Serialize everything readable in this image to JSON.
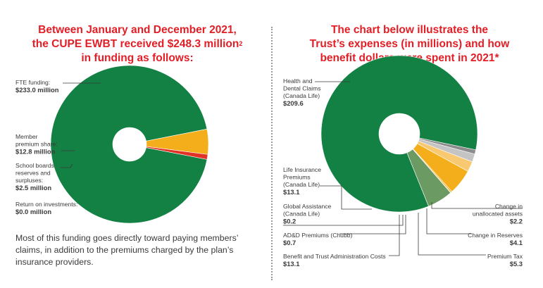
{
  "left_heading": {
    "line1": "Between January and December 2021,",
    "line2": "the CUPE EWBT received $248.3 million",
    "line2_sup": "2",
    "line3": "in funding as follows:"
  },
  "right_heading": {
    "line1": "The chart below illustrates the",
    "line2": "Trust’s expenses (in millions) and how",
    "line3": "benefit dollars were spent in 2021*"
  },
  "summary_text": "Most of this funding goes directly toward paying members’ claims, in addition to the premiums charged by the plan’s insurance providers.",
  "colors": {
    "green": "#138143",
    "gold": "#f5ae1b",
    "red": "#e03226",
    "sage": "#6c9a63",
    "light_gold": "#f9c972",
    "light_gray": "#c4c4c4",
    "dark_gray": "#8c8c8c"
  },
  "chart_data": [
    {
      "type": "pie",
      "donut": true,
      "title": "",
      "slices": [
        {
          "label_lines": [
            "FTE funding:"
          ],
          "value": 233.0,
          "value_label": "$233.0 million",
          "color": "#138143"
        },
        {
          "label_lines": [
            "Member",
            "premium share:"
          ],
          "value": 12.8,
          "value_label": "$12.8 million",
          "color": "#f5ae1b"
        },
        {
          "label_lines": [
            "School boards",
            "reserves and",
            "surpluses:"
          ],
          "value": 2.5,
          "value_label": "$2.5 million",
          "color": "#e03226"
        },
        {
          "label_lines": [
            "Return on investments:"
          ],
          "value": 0.0,
          "value_label": "$0.0 million",
          "color": "#f5ae1b"
        }
      ]
    },
    {
      "type": "pie",
      "donut": true,
      "title": "",
      "slices": [
        {
          "label_lines": [
            "Health and",
            "Dental Claims",
            "(Canada Life)"
          ],
          "value": 209.6,
          "value_label": "$209.6",
          "color": "#138143"
        },
        {
          "label_lines": [
            "Change in",
            "unallocated assets"
          ],
          "value": 2.2,
          "value_label": "$2.2",
          "color": "#8c8c8c"
        },
        {
          "label_lines": [
            "Change in Reserves"
          ],
          "value": 4.1,
          "value_label": "$4.1",
          "color": "#c4c4c4"
        },
        {
          "label_lines": [
            "Premium Tax"
          ],
          "value": 5.3,
          "value_label": "$5.3",
          "color": "#f9c972"
        },
        {
          "label_lines": [
            "Benefit and Trust Administration Costs"
          ],
          "value": 13.1,
          "value_label": "$13.1",
          "color": "#f5ae1b"
        },
        {
          "label_lines": [
            "AD&D Premiums (Chubb)"
          ],
          "value": 0.7,
          "value_label": "$0.7",
          "color": "#f5ae1b"
        },
        {
          "label_lines": [
            "Global Assistance",
            "(Canada Life)"
          ],
          "value": 0.2,
          "value_label": "$0.2",
          "color": "#e03226"
        },
        {
          "label_lines": [
            "Life Insurance",
            "Premiums",
            "(Canada Life)"
          ],
          "value": 13.1,
          "value_label": "$13.1",
          "color": "#6c9a63"
        }
      ]
    }
  ]
}
